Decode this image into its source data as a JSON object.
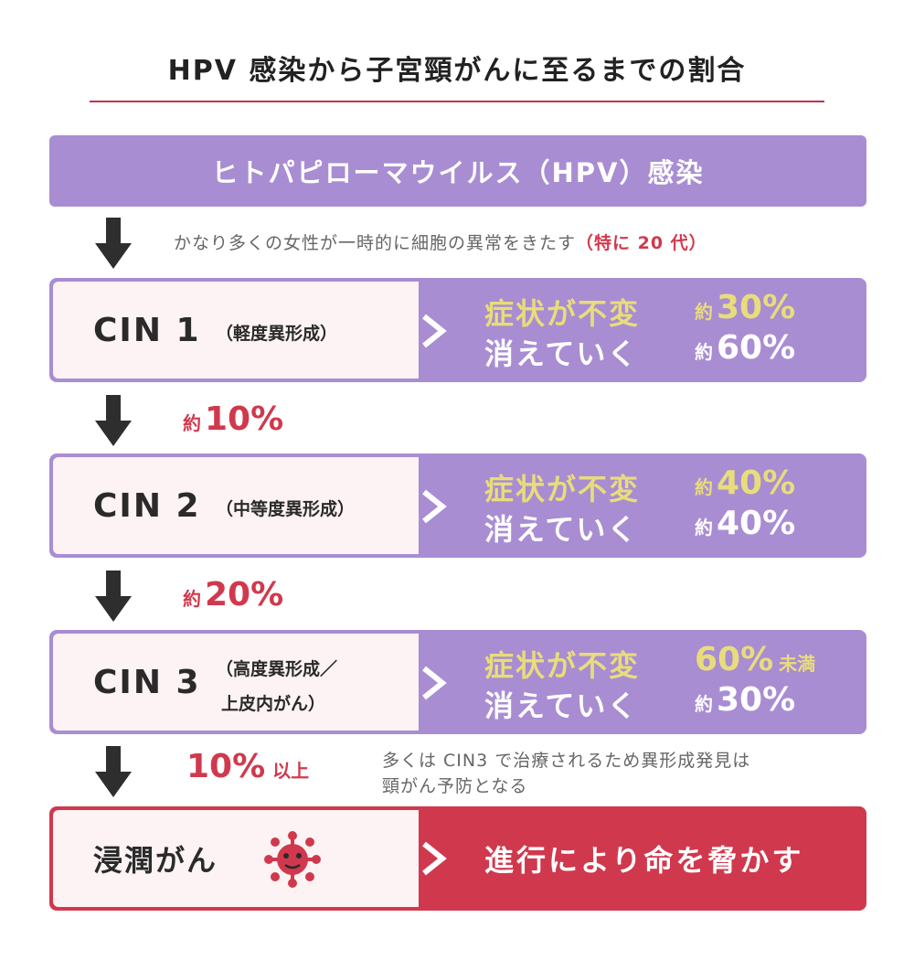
{
  "title": "HPV 感染から子宮頸がんに至るまでの割合",
  "infection_banner": "ヒトパピローマウイルス（HPV）感染",
  "infection_note": {
    "text": "かなり多くの女性が一時的に細胞の異常をきたす",
    "highlight": "（特に 20 代）"
  },
  "outcome_labels": {
    "persist": "症状が不変",
    "regress": "消えていく"
  },
  "stages": [
    {
      "name": "CIN 1",
      "sub1": "（軽度異形成）",
      "sub2": "",
      "persist": {
        "pre": "約",
        "value": "30%",
        "post": ""
      },
      "regress": {
        "pre": "約",
        "value": "60%",
        "post": ""
      }
    },
    {
      "name": "CIN 2",
      "sub1": "（中等度異形成）",
      "sub2": "",
      "persist": {
        "pre": "約",
        "value": "40%",
        "post": ""
      },
      "regress": {
        "pre": "約",
        "value": "40%",
        "post": ""
      }
    },
    {
      "name": "CIN 3",
      "sub1": "（高度異形成／",
      "sub2": "上皮内がん）",
      "persist": {
        "pre": "",
        "value": "60%",
        "post": "未満"
      },
      "regress": {
        "pre": "約",
        "value": "30%",
        "post": ""
      }
    }
  ],
  "progressions": [
    {
      "pre": "約",
      "value": "10%",
      "post": ""
    },
    {
      "pre": "約",
      "value": "20%",
      "post": ""
    },
    {
      "pre": "",
      "value": "10%",
      "post": "以上"
    }
  ],
  "cin3_note": {
    "line1": "多くは CIN3 で治療されるため異形成発見は",
    "line2": "頸がん予防となる"
  },
  "cancer": {
    "label": "浸潤がん",
    "result": "進行により命を脅かす"
  },
  "colors": {
    "purple": "#a98dd2",
    "red": "#d0394d",
    "yellow": "#e8dd7a",
    "pale": "#fdf3f4",
    "arrow": "#2e2e2e"
  },
  "icons": {
    "down_arrow": "down-arrow-icon",
    "chevron": "chevron-right-icon",
    "virus": "virus-icon"
  }
}
